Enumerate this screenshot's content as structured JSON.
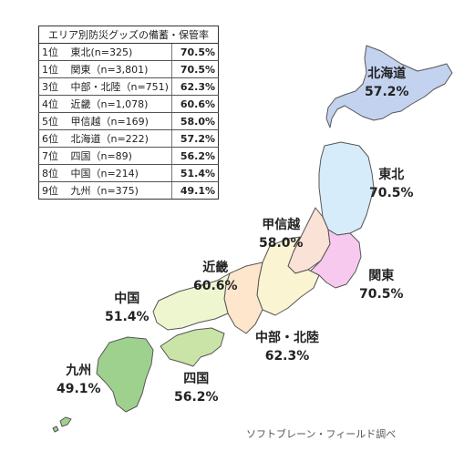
{
  "chart_data": {
    "type": "table",
    "title": "エリア別防災グッズの備蓄・保管率",
    "ranking": [
      {
        "rank": "1位",
        "region": "東北(n=325)",
        "rate": "70.5%"
      },
      {
        "rank": "1位",
        "region": "関東（n=3,801)",
        "rate": "70.5%"
      },
      {
        "rank": "3位",
        "region": "中部・北陸（n=751)",
        "rate": "62.3%"
      },
      {
        "rank": "4位",
        "region": "近畿（n=1,078)",
        "rate": "60.6%"
      },
      {
        "rank": "5位",
        "region": "甲信越（n=169)",
        "rate": "58.0%"
      },
      {
        "rank": "6位",
        "region": "北海道（n=222)",
        "rate": "57.2%"
      },
      {
        "rank": "7位",
        "region": "四国（n=89)",
        "rate": "56.2%"
      },
      {
        "rank": "8位",
        "region": "中国（n=214)",
        "rate": "51.4%"
      },
      {
        "rank": "9位",
        "region": "九州（n=375)",
        "rate": "49.1%"
      }
    ],
    "map_labels": [
      {
        "name": "北海道",
        "value": "57.2%",
        "color": "#c3d2ee"
      },
      {
        "name": "東北",
        "value": "70.5%",
        "color": "#d6ecfb"
      },
      {
        "name": "甲信越",
        "value": "58.0%",
        "color": "#fbe2d6"
      },
      {
        "name": "関東",
        "value": "70.5%",
        "color": "#f8c9ee"
      },
      {
        "name": "近畿",
        "value": "60.6%",
        "color": "#fbf4d2"
      },
      {
        "name": "中部・北陸",
        "value": "62.3%",
        "color": "#fde6cc"
      },
      {
        "name": "中国",
        "value": "51.4%",
        "color": "#eef6d0"
      },
      {
        "name": "四国",
        "value": "56.2%",
        "color": "#c9e4a6"
      },
      {
        "name": "九州",
        "value": "49.1%",
        "color": "#9fd18e"
      }
    ]
  },
  "credit": "ソフトブレーン・フィールド調べ"
}
